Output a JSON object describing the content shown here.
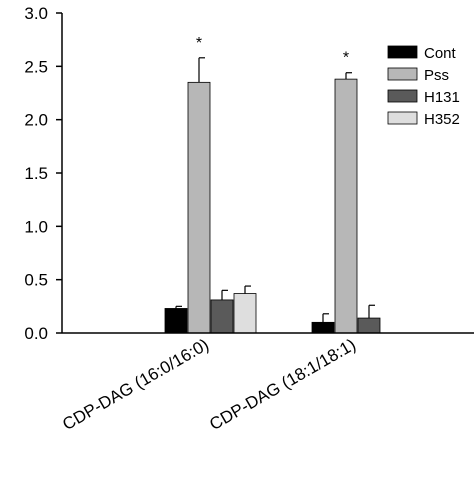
{
  "chart_data": {
    "type": "bar",
    "title": "",
    "xlabel": "",
    "ylabel": "",
    "ylim": [
      0,
      3.0
    ],
    "yticks": [
      "0.0",
      "0.5",
      "1.0",
      "1.5",
      "2.0",
      "2.5",
      "3.0"
    ],
    "grid": false,
    "legend_position": "top-right",
    "categories": [
      "CDP-DAG (16:0/16:0)",
      "CDP-DAG (18:1/18:1)"
    ],
    "series": [
      {
        "name": "Cont",
        "color": "#000000",
        "values": [
          0.23,
          0.1
        ],
        "errors": [
          0.02,
          0.08
        ]
      },
      {
        "name": "Pss",
        "color": "#b7b7b7",
        "values": [
          2.35,
          2.38
        ],
        "errors": [
          0.23,
          0.06
        ]
      },
      {
        "name": "H131",
        "color": "#5a5a5a",
        "values": [
          0.31,
          0.14
        ],
        "errors": [
          0.09,
          0.12
        ]
      },
      {
        "name": "H352",
        "color": "#dedede",
        "values": [
          0.37,
          null
        ],
        "errors": [
          0.07,
          null
        ]
      }
    ],
    "annotations": [
      {
        "text": "*",
        "category": 0,
        "series": 1
      },
      {
        "text": "*",
        "category": 1,
        "series": 1
      }
    ]
  }
}
